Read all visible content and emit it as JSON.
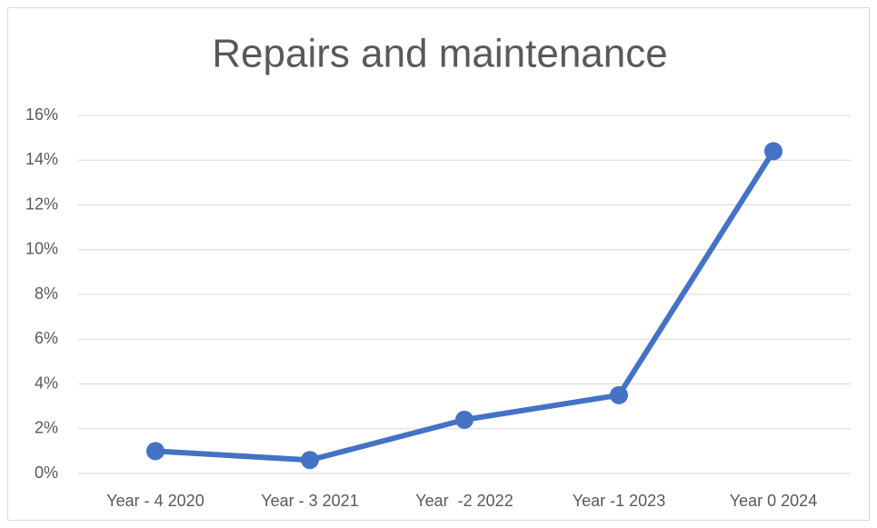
{
  "chart_data": {
    "type": "line",
    "title": "Repairs and maintenance",
    "categories": [
      "Year - 4 2020",
      "Year - 3 2021",
      "Year  -2 2022",
      "Year -1 2023",
      "Year 0 2024"
    ],
    "series": [
      {
        "name": "Repairs and maintenance",
        "color": "#4472c4",
        "values": [
          1.0,
          0.6,
          2.4,
          3.5,
          14.4
        ]
      }
    ],
    "ylim": [
      0,
      16
    ],
    "yticks": [
      {
        "value": 0,
        "label": "0%"
      },
      {
        "value": 2,
        "label": "2%"
      },
      {
        "value": 4,
        "label": "4%"
      },
      {
        "value": 6,
        "label": "6%"
      },
      {
        "value": 8,
        "label": "8%"
      },
      {
        "value": 10,
        "label": "10%"
      },
      {
        "value": 12,
        "label": "12%"
      },
      {
        "value": 14,
        "label": "14%"
      },
      {
        "value": 16,
        "label": "16%"
      }
    ],
    "grid": true
  }
}
